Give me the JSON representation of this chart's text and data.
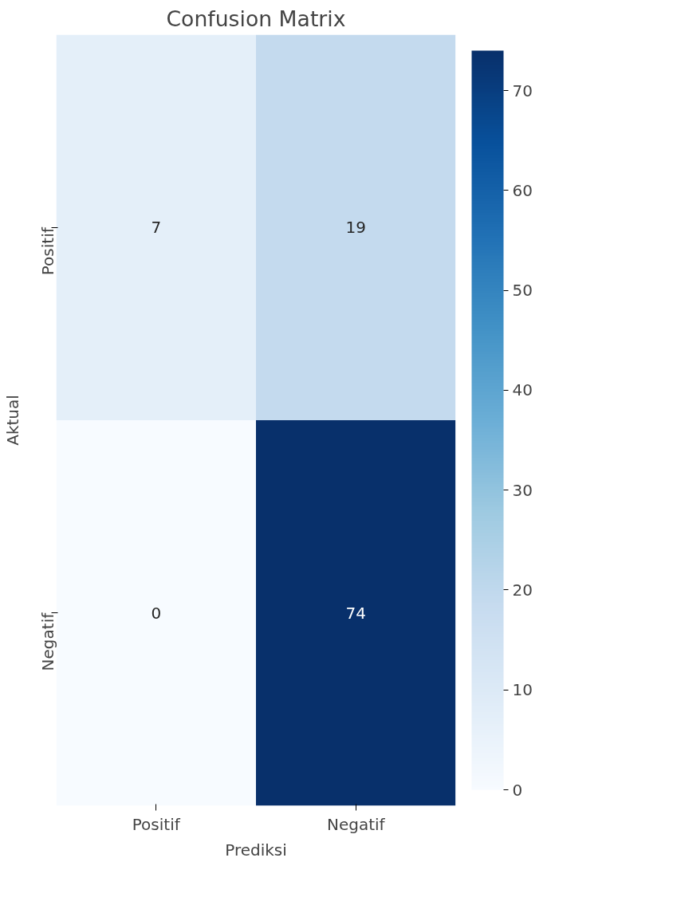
{
  "chart_data": {
    "type": "heatmap",
    "title": "Confusion Matrix",
    "xlabel": "Prediksi",
    "ylabel": "Aktual",
    "categories": [
      "Positif",
      "Negatif"
    ],
    "y_categories": [
      "Positif",
      "Negatif"
    ],
    "cells": [
      [
        7,
        19
      ],
      [
        0,
        74
      ]
    ],
    "clim": [
      0,
      74
    ],
    "cticks": [
      0,
      10,
      20,
      30,
      40,
      50,
      60,
      70
    ],
    "data_labels": true
  }
}
